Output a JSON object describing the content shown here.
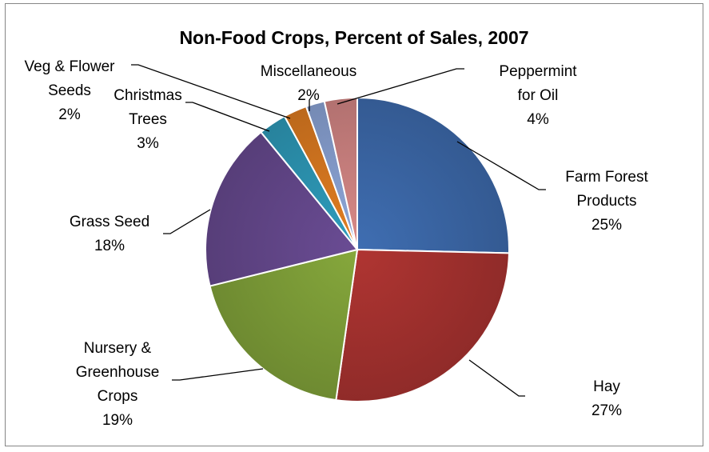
{
  "chart_data": {
    "type": "pie",
    "title": "Non-Food Crops, Percent of Sales, 2007",
    "start_angle_deg": 0,
    "direction": "clockwise",
    "legend": "none",
    "slices": [
      {
        "label_lines": [
          "Farm Forest",
          "Products"
        ],
        "percent_label": "25%",
        "value": 25.5,
        "color": "#3F6EB2"
      },
      {
        "label_lines": [
          "Hay"
        ],
        "percent_label": "27%",
        "value": 27.0,
        "color": "#B03532"
      },
      {
        "label_lines": [
          "Nursery &",
          "Greenhouse",
          "Crops"
        ],
        "percent_label": "19%",
        "value": 19.0,
        "color": "#86A83C"
      },
      {
        "label_lines": [
          "Grass Seed"
        ],
        "percent_label": "18%",
        "value": 18.0,
        "color": "#6A4C94"
      },
      {
        "label_lines": [
          "Christmas",
          "Trees"
        ],
        "percent_label": "3%",
        "value": 3.0,
        "color": "#2F9EBE"
      },
      {
        "label_lines": [
          "Veg & Flower",
          "Seeds"
        ],
        "percent_label": "2%",
        "value": 2.5,
        "color": "#E47F22"
      },
      {
        "label_lines": [
          "Miscellaneous"
        ],
        "percent_label": "2%",
        "value": 2.0,
        "color": "#8FA8DB"
      },
      {
        "label_lines": [
          "Peppermint",
          "for Oil"
        ],
        "percent_label": "4%",
        "value": 3.5,
        "color": "#D98A88"
      }
    ]
  }
}
